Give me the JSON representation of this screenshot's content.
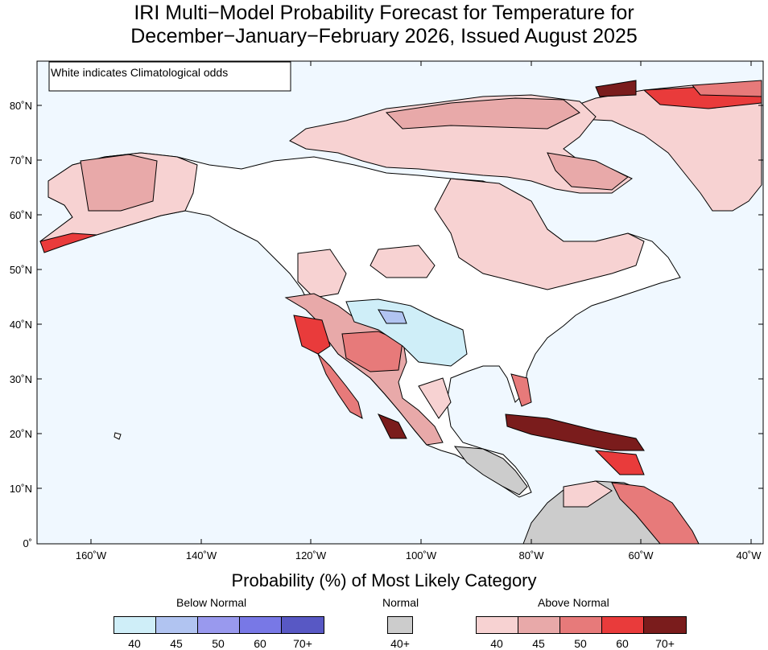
{
  "title_line1": "IRI Multi−Model Probability Forecast for Temperature for",
  "title_line2": "December−January−February 2026, Issued August 2025",
  "note": "White indicates Climatological odds",
  "lat_labels": [
    "80˚N",
    "70˚N",
    "60˚N",
    "50˚N",
    "40˚N",
    "30˚N",
    "20˚N",
    "10˚N",
    "0˚"
  ],
  "lon_labels": [
    "160˚W",
    "140˚W",
    "120˚W",
    "100˚W",
    "80˚W",
    "60˚W",
    "40˚W"
  ],
  "legend": {
    "title": "Probability (%) of Most Likely Category",
    "below": {
      "label": "Below Normal",
      "levels": [
        "40",
        "45",
        "50",
        "60",
        "70+"
      ],
      "colors": [
        "#cfeef8",
        "#b1c4f1",
        "#9999ee",
        "#7878e6",
        "#5858c4"
      ]
    },
    "normal": {
      "label": "Normal",
      "levels": [
        "40+"
      ],
      "colors": [
        "#cccccc"
      ]
    },
    "above": {
      "label": "Above Normal",
      "levels": [
        "40",
        "45",
        "50",
        "60",
        "70+"
      ],
      "colors": [
        "#f7d2d2",
        "#e8a9a9",
        "#e77a7a",
        "#e93b3b",
        "#7a1c1c"
      ]
    }
  },
  "colors": {
    "ocean": "#f0f8ff",
    "land": "#ffffff",
    "coast": "#000000"
  }
}
